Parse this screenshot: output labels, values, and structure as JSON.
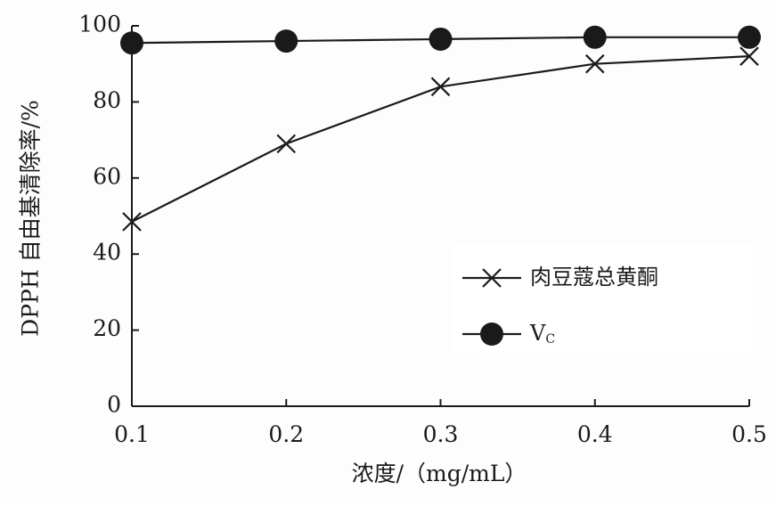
{
  "chart_data": {
    "type": "line",
    "title": "",
    "xlabel": "浓度/（mg/mL）",
    "ylabel": "DPPH 自由基清除率/%",
    "x": [
      0.1,
      0.2,
      0.3,
      0.4,
      0.5
    ],
    "x_ticks": [
      "0.1",
      "0.2",
      "0.3",
      "0.4",
      "0.5"
    ],
    "xlim": [
      0.1,
      0.5
    ],
    "y_ticks": [
      "0",
      "20",
      "40",
      "60",
      "80",
      "100"
    ],
    "ylim": [
      0,
      100
    ],
    "grid": false,
    "legend_position": "lower-right",
    "series": [
      {
        "name": "肉豆蔻总黄酮",
        "marker": "x",
        "color": "#1a1a1a",
        "values": [
          48.5,
          69,
          84,
          90,
          92
        ]
      },
      {
        "name": "V",
        "name_subscript": "C",
        "marker": "filled-circle",
        "color": "#1a1a1a",
        "values": [
          95.5,
          96,
          96.5,
          97,
          97
        ]
      }
    ]
  }
}
